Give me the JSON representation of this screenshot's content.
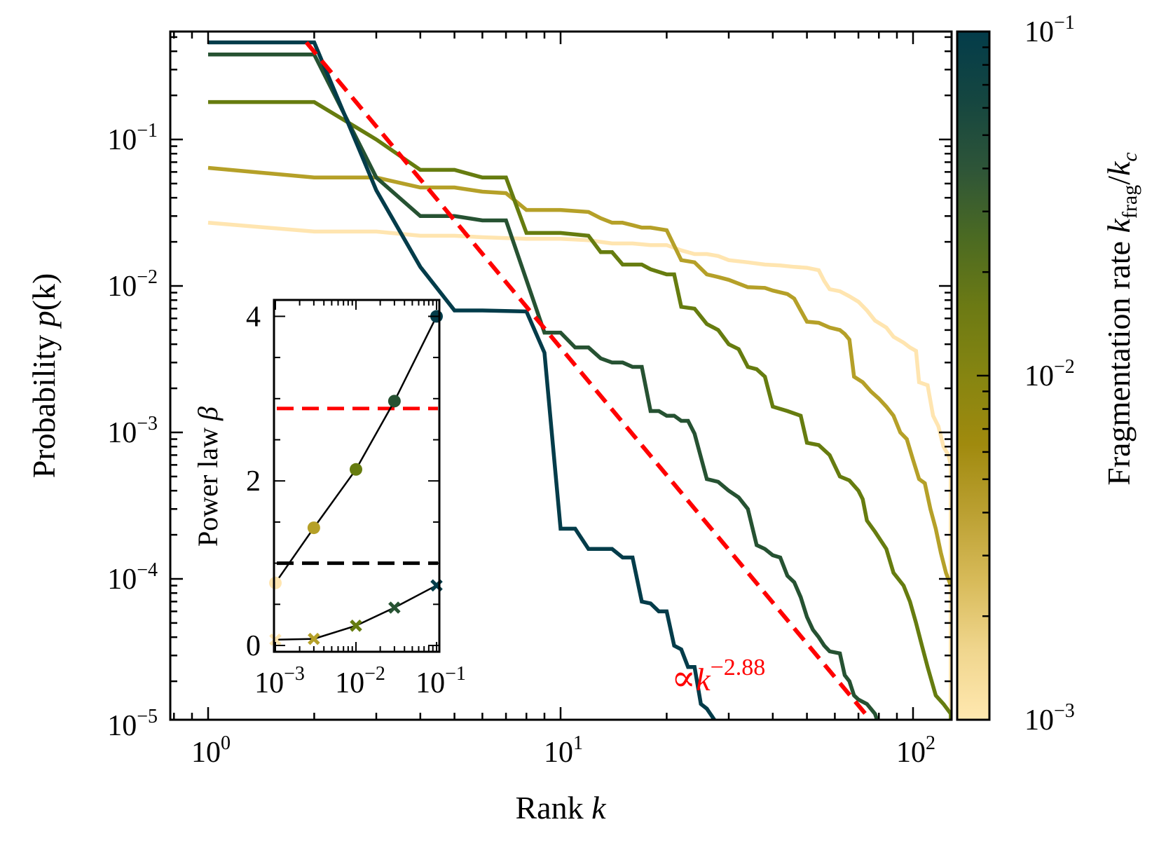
{
  "chart_data": [
    {
      "type": "line",
      "title": "",
      "xlabel": "Rank k",
      "ylabel": "Probability p(k)",
      "xscale": "log",
      "yscale": "log",
      "xlim": [
        0.77,
        128
      ],
      "ylim": [
        1e-05,
        0.55
      ],
      "xticks": [
        "10^0",
        "10^1",
        "10^2"
      ],
      "yticks": [
        "10^-5",
        "10^-4",
        "10^-3",
        "10^-2",
        "10^-1"
      ],
      "grid": false,
      "legend": "none (colorbar)",
      "series": [
        {
          "name": "k_frag/k_c = 1e-3",
          "color": "#FFE5B0",
          "points": [
            [
              1,
              0.027
            ],
            [
              2,
              0.0235
            ],
            [
              3,
              0.0235
            ],
            [
              4,
              0.022
            ],
            [
              5,
              0.022
            ],
            [
              6,
              0.0215
            ],
            [
              8,
              0.021
            ],
            [
              10,
              0.021
            ],
            [
              12,
              0.0205
            ],
            [
              14,
              0.0195
            ],
            [
              16,
              0.0195
            ],
            [
              18,
              0.019
            ],
            [
              20,
              0.019
            ],
            [
              22,
              0.0175
            ],
            [
              24,
              0.0165
            ],
            [
              26,
              0.0165
            ],
            [
              28,
              0.016
            ],
            [
              30,
              0.015
            ],
            [
              34,
              0.0145
            ],
            [
              38,
              0.014
            ],
            [
              42,
              0.0138
            ],
            [
              46,
              0.0135
            ],
            [
              50,
              0.0133
            ],
            [
              54,
              0.0128
            ],
            [
              56,
              0.0108
            ],
            [
              58,
              0.0095
            ],
            [
              62,
              0.0092
            ],
            [
              66,
              0.0085
            ],
            [
              70,
              0.0078
            ],
            [
              74,
              0.0068
            ],
            [
              78,
              0.0058
            ],
            [
              84,
              0.0052
            ],
            [
              88,
              0.0045
            ],
            [
              94,
              0.0041
            ],
            [
              98,
              0.0038
            ],
            [
              102,
              0.0036
            ],
            [
              104,
              0.0022
            ],
            [
              110,
              0.0021
            ],
            [
              114,
              0.0013
            ],
            [
              118,
              0.0011
            ],
            [
              122,
              0.0008
            ],
            [
              126,
              0.0007
            ],
            [
              128,
              0.0006
            ],
            [
              128,
              1e-05
            ]
          ]
        },
        {
          "name": "k_frag/k_c = 3e-3",
          "color": "#B5A028",
          "points": [
            [
              1,
              0.064
            ],
            [
              2,
              0.055
            ],
            [
              3,
              0.055
            ],
            [
              4,
              0.047
            ],
            [
              5,
              0.047
            ],
            [
              6,
              0.044
            ],
            [
              7,
              0.043
            ],
            [
              8,
              0.033
            ],
            [
              10,
              0.033
            ],
            [
              12,
              0.032
            ],
            [
              13,
              0.029
            ],
            [
              14,
              0.027
            ],
            [
              15,
              0.027
            ],
            [
              16,
              0.026
            ],
            [
              17,
              0.025
            ],
            [
              18,
              0.025
            ],
            [
              19,
              0.0245
            ],
            [
              20,
              0.024
            ],
            [
              22,
              0.015
            ],
            [
              24,
              0.0145
            ],
            [
              26,
              0.012
            ],
            [
              28,
              0.0115
            ],
            [
              30,
              0.011
            ],
            [
              34,
              0.0098
            ],
            [
              38,
              0.0097
            ],
            [
              40,
              0.0093
            ],
            [
              44,
              0.0088
            ],
            [
              46,
              0.0082
            ],
            [
              48,
              0.0068
            ],
            [
              50,
              0.0057
            ],
            [
              54,
              0.0056
            ],
            [
              58,
              0.0052
            ],
            [
              62,
              0.005
            ],
            [
              64,
              0.0047
            ],
            [
              66,
              0.0043
            ],
            [
              68,
              0.0024
            ],
            [
              72,
              0.0022
            ],
            [
              76,
              0.0019
            ],
            [
              80,
              0.0017
            ],
            [
              84,
              0.0015
            ],
            [
              88,
              0.0013
            ],
            [
              92,
              0.001
            ],
            [
              96,
              0.0009
            ],
            [
              100,
              0.00065
            ],
            [
              104,
              0.00048
            ],
            [
              108,
              0.00045
            ],
            [
              112,
              0.0003
            ],
            [
              116,
              0.00022
            ],
            [
              120,
              0.00015
            ],
            [
              124,
              0.00011
            ],
            [
              128,
              9e-05
            ]
          ]
        },
        {
          "name": "k_frag/k_c = 1e-2",
          "color": "#667C0F",
          "points": [
            [
              1,
              0.18
            ],
            [
              2,
              0.18
            ],
            [
              3,
              0.1
            ],
            [
              4,
              0.062
            ],
            [
              5,
              0.062
            ],
            [
              6,
              0.055
            ],
            [
              7,
              0.055
            ],
            [
              8,
              0.023
            ],
            [
              10,
              0.023
            ],
            [
              12,
              0.022
            ],
            [
              13,
              0.017
            ],
            [
              14,
              0.017
            ],
            [
              15,
              0.014
            ],
            [
              16,
              0.014
            ],
            [
              17,
              0.014
            ],
            [
              18,
              0.013
            ],
            [
              20,
              0.012
            ],
            [
              21,
              0.012
            ],
            [
              22,
              0.0072
            ],
            [
              24,
              0.007
            ],
            [
              26,
              0.0055
            ],
            [
              28,
              0.005
            ],
            [
              30,
              0.004
            ],
            [
              32,
              0.0037
            ],
            [
              34,
              0.0028
            ],
            [
              36,
              0.0027
            ],
            [
              38,
              0.0024
            ],
            [
              40,
              0.0015
            ],
            [
              44,
              0.0014
            ],
            [
              48,
              0.0013
            ],
            [
              50,
              0.00085
            ],
            [
              54,
              0.00082
            ],
            [
              58,
              0.0007
            ],
            [
              62,
              0.0005
            ],
            [
              66,
              0.00047
            ],
            [
              70,
              0.0004
            ],
            [
              72,
              0.00035
            ],
            [
              74,
              0.00025
            ],
            [
              78,
              0.00021
            ],
            [
              84,
              0.00016
            ],
            [
              88,
              0.00011
            ],
            [
              94,
              9e-05
            ],
            [
              98,
              7e-05
            ],
            [
              102,
              5e-05
            ],
            [
              106,
              3.5e-05
            ],
            [
              110,
              2.5e-05
            ],
            [
              116,
              1.6e-05
            ],
            [
              122,
              1.4e-05
            ],
            [
              128,
              1.2e-05
            ],
            [
              128,
              1e-05
            ]
          ]
        },
        {
          "name": "k_frag/k_c = 3e-2",
          "color": "#265232",
          "points": [
            [
              1,
              0.38
            ],
            [
              2,
              0.38
            ],
            [
              3,
              0.055
            ],
            [
              4,
              0.03
            ],
            [
              5,
              0.03
            ],
            [
              6,
              0.028
            ],
            [
              7,
              0.028
            ],
            [
              9,
              0.0048
            ],
            [
              10,
              0.0048
            ],
            [
              11,
              0.0038
            ],
            [
              12,
              0.0038
            ],
            [
              13,
              0.0032
            ],
            [
              14,
              0.003
            ],
            [
              15,
              0.003
            ],
            [
              16,
              0.0028
            ],
            [
              17,
              0.0028
            ],
            [
              18,
              0.0014
            ],
            [
              19,
              0.0014
            ],
            [
              20,
              0.0013
            ],
            [
              21,
              0.0013
            ],
            [
              22,
              0.0012
            ],
            [
              23,
              0.0012
            ],
            [
              24,
              0.00098
            ],
            [
              26,
              0.00048
            ],
            [
              28,
              0.00046
            ],
            [
              30,
              0.0004
            ],
            [
              32,
              0.00036
            ],
            [
              34,
              0.0003
            ],
            [
              36,
              0.00017
            ],
            [
              38,
              0.00016
            ],
            [
              40,
              0.000145
            ],
            [
              42,
              0.00014
            ],
            [
              44,
              0.000105
            ],
            [
              46,
              9.5e-05
            ],
            [
              48,
              7.5e-05
            ],
            [
              50,
              5.5e-05
            ],
            [
              52,
              4.5e-05
            ],
            [
              54,
              4e-05
            ],
            [
              56,
              3.5e-05
            ],
            [
              58,
              3.2e-05
            ],
            [
              62,
              3.1e-05
            ],
            [
              64,
              2.2e-05
            ],
            [
              66,
              2e-05
            ],
            [
              68,
              1.6e-05
            ],
            [
              70,
              1.5e-05
            ],
            [
              74,
              1.4e-05
            ],
            [
              78,
              1.2e-05
            ],
            [
              80,
              1e-05
            ]
          ]
        },
        {
          "name": "k_frag/k_c = 1e-1",
          "color": "#033C4A",
          "points": [
            [
              1,
              0.46
            ],
            [
              2,
              0.46
            ],
            [
              3,
              0.045
            ],
            [
              4,
              0.0135
            ],
            [
              5,
              0.0068
            ],
            [
              6,
              0.0068
            ],
            [
              8,
              0.0067
            ],
            [
              9,
              0.0035
            ],
            [
              10,
              0.00022
            ],
            [
              11,
              0.00022
            ],
            [
              12,
              0.00016
            ],
            [
              13,
              0.00016
            ],
            [
              14,
              0.00016
            ],
            [
              15,
              0.00014
            ],
            [
              16,
              0.00014
            ],
            [
              17,
              7e-05
            ],
            [
              18,
              6.8e-05
            ],
            [
              19,
              6e-05
            ],
            [
              20,
              6e-05
            ],
            [
              21,
              3.5e-05
            ],
            [
              22,
              3.3e-05
            ],
            [
              23,
              2.5e-05
            ],
            [
              24,
              2.5e-05
            ],
            [
              25,
              1.4e-05
            ],
            [
              26,
              1.3e-05
            ],
            [
              28,
              1e-05
            ]
          ]
        }
      ],
      "fit_line": {
        "label": "∝k^−2.88",
        "exponent": -2.88,
        "style": "dashed",
        "color": "#FF0000",
        "from": [
          1.9,
          0.46
        ],
        "to": [
          78,
          1e-05
        ]
      },
      "colorbar": {
        "label": "Fragmentation rate k_frag/k_c",
        "scale": "log",
        "range": [
          0.001,
          0.1
        ],
        "ticks": [
          "10^-3",
          "10^-2",
          "10^-1"
        ],
        "colormap": [
          "#FFE8B0",
          "#F0D68E",
          "#D8BB5A",
          "#BBA032",
          "#A08A0E",
          "#868511",
          "#6C7A14",
          "#4B6A22",
          "#2E5538",
          "#154640",
          "#033C4A"
        ]
      }
    },
    {
      "type": "scatter",
      "title": "inset",
      "xlabel": "",
      "ylabel": "Power law β",
      "xscale": "log",
      "xlim": [
        0.00095,
        0.108
      ],
      "ylim": [
        -0.05,
        4.3
      ],
      "xticks": [
        "10^-3",
        "10^-2",
        "10^-1"
      ],
      "yticks": [
        "0",
        "2",
        "4"
      ],
      "x": [
        0.001,
        0.003,
        0.01,
        0.03,
        0.1
      ],
      "series": [
        {
          "name": "β (circles)",
          "marker": "circle",
          "values": [
            0.76,
            1.43,
            2.14,
            2.97,
            4.0
          ],
          "colors": [
            "#FFE5B0",
            "#B5A028",
            "#667C0F",
            "#265232",
            "#033C4A"
          ]
        },
        {
          "name": "β (crosses)",
          "marker": "x",
          "values": [
            0.07,
            0.08,
            0.24,
            0.46,
            0.73
          ],
          "colors": [
            "#FFE5B0",
            "#B5A028",
            "#667C0F",
            "#265232",
            "#033C4A"
          ]
        }
      ],
      "reference_lines": [
        {
          "y": 2.88,
          "color": "#FF0000",
          "style": "dashed"
        },
        {
          "y": 1.0,
          "color": "#000000",
          "style": "dashed"
        }
      ]
    }
  ],
  "labels": {
    "xlabel_main": "Rank ",
    "xlabel_var": "k",
    "ylabel_main": "Probability ",
    "ylabel_var": "p",
    "ylabel_paren": "(k)",
    "inset_ylabel": "Power law ",
    "inset_ylabel_var": "β",
    "colorbar_label": "Fragmentation rate ",
    "colorbar_var_k": "k",
    "colorbar_sub_frag": "frag",
    "colorbar_slash": "/",
    "colorbar_sub_c": "c",
    "fit_prop": "∝",
    "fit_k": "k",
    "fit_exp": "−2.88"
  }
}
